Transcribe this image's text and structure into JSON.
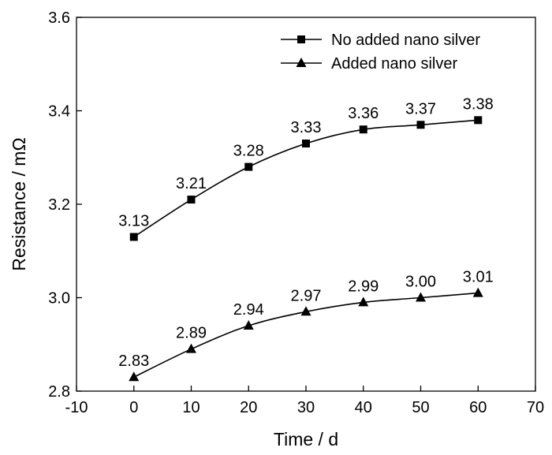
{
  "chart_data": {
    "type": "line",
    "title": "",
    "xlabel": "Time / d",
    "ylabel": "Resistance / mΩ",
    "xlim": [
      -10,
      70
    ],
    "ylim": [
      2.8,
      3.6
    ],
    "x_ticks": [
      -10,
      0,
      10,
      20,
      30,
      40,
      50,
      60,
      70
    ],
    "y_ticks": [
      2.8,
      3.0,
      3.2,
      3.4,
      3.6
    ],
    "x_tick_labels": [
      "-10",
      "0",
      "10",
      "20",
      "30",
      "40",
      "50",
      "60",
      "70"
    ],
    "y_tick_labels": [
      "2.8",
      "3.0",
      "3.2",
      "3.4",
      "3.6"
    ],
    "grid": false,
    "legend_position": "top-right",
    "x": [
      0,
      10,
      20,
      30,
      40,
      50,
      60
    ],
    "series": [
      {
        "name": "No added nano silver",
        "marker": "square",
        "color": "#000000",
        "values": [
          3.13,
          3.21,
          3.28,
          3.33,
          3.36,
          3.37,
          3.38
        ],
        "labels": [
          "3.13",
          "3.21",
          "3.28",
          "3.33",
          "3.36",
          "3.37",
          "3.38"
        ]
      },
      {
        "name": "Added nano silver",
        "marker": "triangle",
        "color": "#000000",
        "values": [
          2.83,
          2.89,
          2.94,
          2.97,
          2.99,
          3.0,
          3.01
        ],
        "labels": [
          "2.83",
          "2.89",
          "2.94",
          "2.97",
          "2.99",
          "3.00",
          "3.01"
        ]
      }
    ]
  }
}
